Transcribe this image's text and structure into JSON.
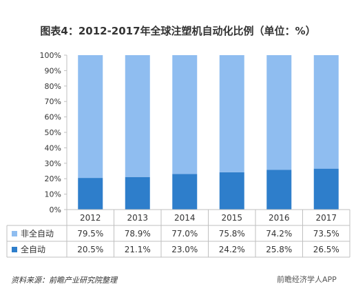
{
  "title": "图表4：2012-2017年全球注塑机自动化比例（单位：%）",
  "chart_data": {
    "type": "bar",
    "stacked": true,
    "categories": [
      "2012",
      "2013",
      "2014",
      "2015",
      "2016",
      "2017"
    ],
    "series": [
      {
        "name": "全自动",
        "values": [
          20.5,
          21.1,
          23.0,
          24.2,
          25.8,
          26.5
        ],
        "color": "#2e7ecb",
        "labels": [
          "20.5%",
          "21.1%",
          "23.0%",
          "24.2%",
          "25.8%",
          "26.5%"
        ]
      },
      {
        "name": "非全自动",
        "values": [
          79.5,
          78.9,
          77.0,
          75.8,
          74.2,
          73.5
        ],
        "color": "#8fbdf0",
        "labels": [
          "79.5%",
          "78.9%",
          "77.0%",
          "75.8%",
          "74.2%",
          "73.5%"
        ]
      }
    ],
    "ylim": [
      0,
      100
    ],
    "y_ticks": [
      "0%",
      "10%",
      "20%",
      "30%",
      "40%",
      "50%",
      "60%",
      "70%",
      "80%",
      "90%",
      "100%"
    ],
    "table_rows": [
      "非全自动",
      "全自动"
    ],
    "legend": "in-table"
  },
  "footer": {
    "source": "资料来源：前瞻产业研究院整理",
    "brand": "前瞻经济学人APP"
  }
}
